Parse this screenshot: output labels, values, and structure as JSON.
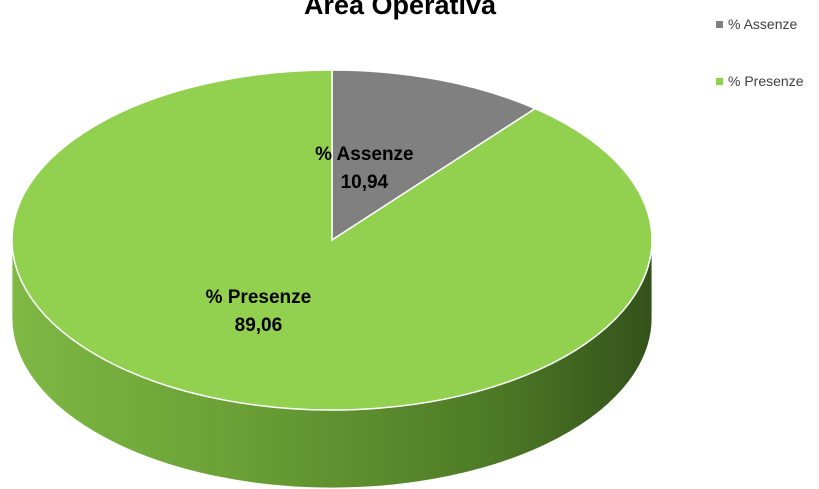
{
  "chart_data": {
    "type": "pie",
    "title": "Area Operativa",
    "categories": [
      "% Assenze",
      "% Presenze"
    ],
    "values": [
      10.94,
      89.06
    ],
    "value_labels": [
      "10,94",
      "89,06"
    ],
    "colors": [
      "#808080",
      "#92D050"
    ],
    "side_colors": [
      "#5a5a5a",
      "#6fa336"
    ],
    "legend": {
      "position": "top-right",
      "entries": [
        "% Assenze",
        "% Presenze"
      ]
    },
    "style": "3d"
  }
}
